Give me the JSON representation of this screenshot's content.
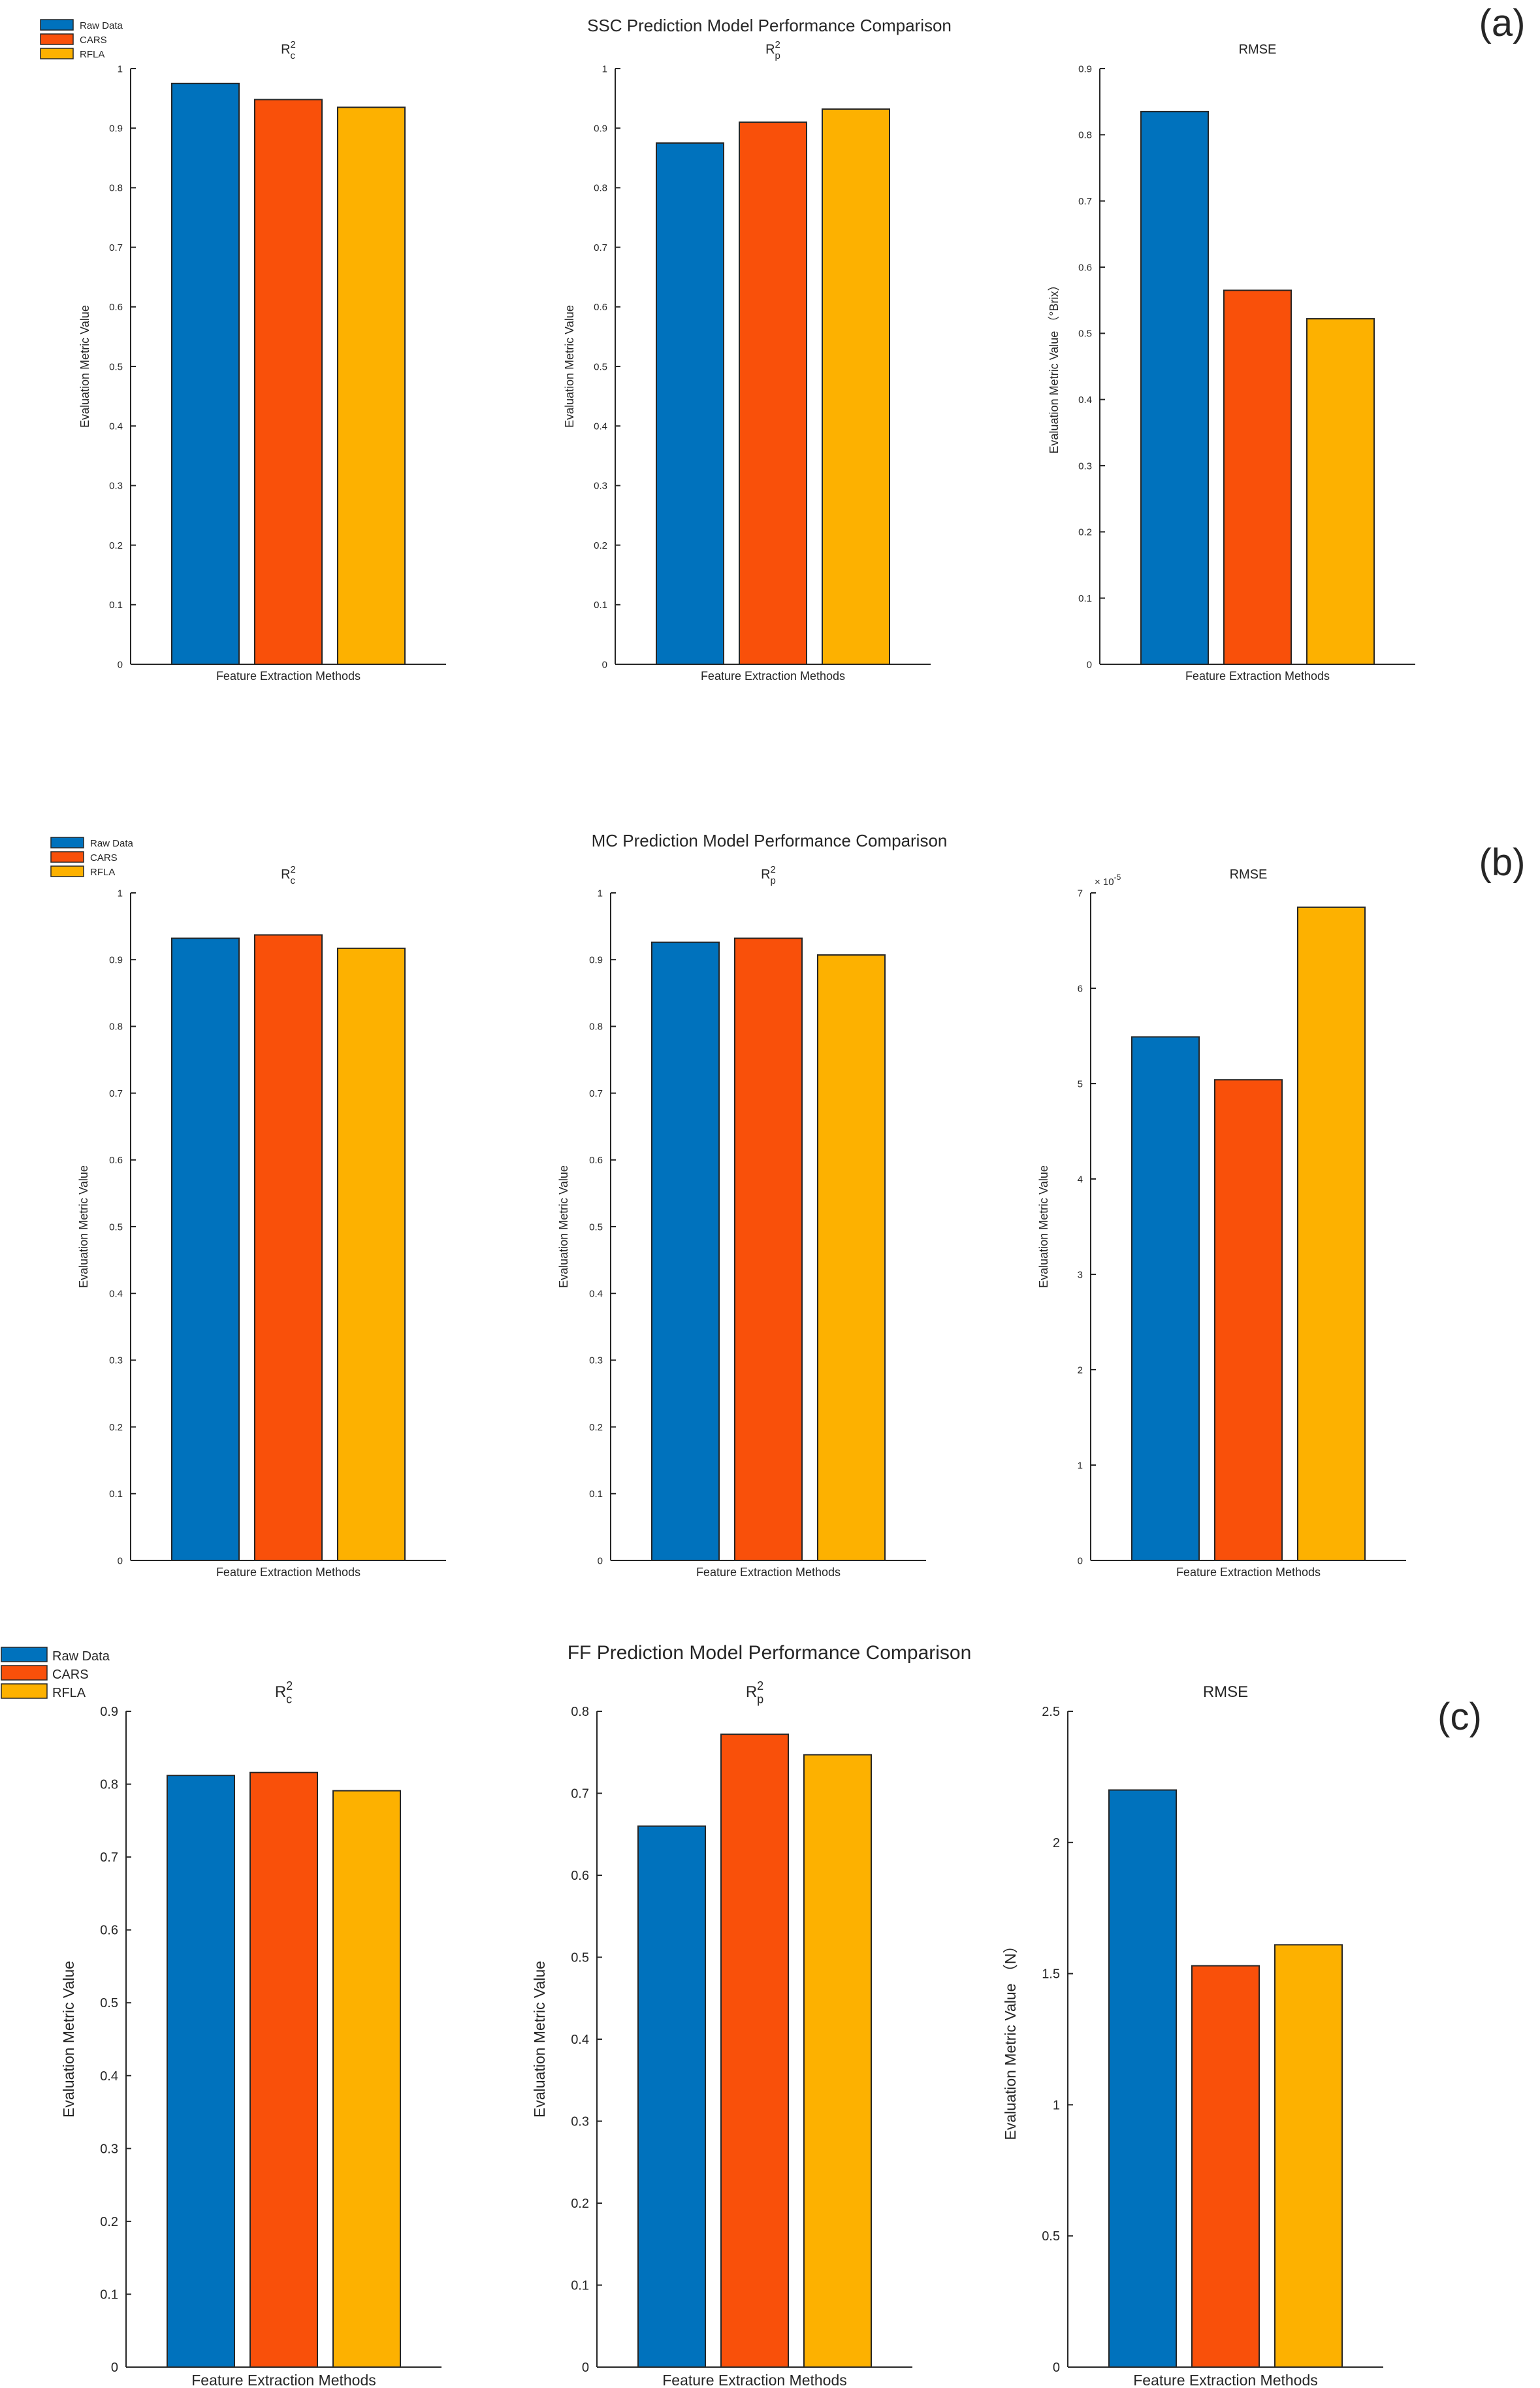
{
  "colors": {
    "raw_data": "#0072BD",
    "cars": "#F9500A",
    "rfla": "#FDB100"
  },
  "chart_data": [
    {
      "id": "a",
      "panel_label": "(a)",
      "title": "SSC Prediction Model Performance Comparison",
      "legend": [
        "Raw Data",
        "CARS",
        "RFLA"
      ],
      "subplots": [
        {
          "type": "bar",
          "title": "R",
          "title_sup": "2",
          "title_sub": "c",
          "xlabel": "Feature Extraction Methods",
          "ylabel": "Evaluation Metric Value",
          "ylim": [
            0,
            1
          ],
          "yticks": [
            0,
            0.1,
            0.2,
            0.3,
            0.4,
            0.5,
            0.6,
            0.7,
            0.8,
            0.9,
            1
          ],
          "ytick_labels": [
            "0",
            "0.1",
            "0.2",
            "0.3",
            "0.4",
            "0.5",
            "0.6",
            "0.7",
            "0.8",
            "0.9",
            "1"
          ],
          "categories": [
            "Raw Data",
            "CARS",
            "RFLA"
          ],
          "values": [
            0.975,
            0.948,
            0.935
          ]
        },
        {
          "type": "bar",
          "title": "R",
          "title_sup": "2",
          "title_sub": "p",
          "xlabel": "Feature Extraction Methods",
          "ylabel": "Evaluation Metric Value",
          "ylim": [
            0,
            1
          ],
          "yticks": [
            0,
            0.1,
            0.2,
            0.3,
            0.4,
            0.5,
            0.6,
            0.7,
            0.8,
            0.9,
            1
          ],
          "ytick_labels": [
            "0",
            "0.1",
            "0.2",
            "0.3",
            "0.4",
            "0.5",
            "0.6",
            "0.7",
            "0.8",
            "0.9",
            "1"
          ],
          "categories": [
            "Raw Data",
            "CARS",
            "RFLA"
          ],
          "values": [
            0.875,
            0.91,
            0.932
          ]
        },
        {
          "type": "bar",
          "title": "RMSE",
          "title_sup": "",
          "title_sub": "",
          "xlabel": "Feature Extraction Methods",
          "ylabel": "Evaluation Metric Value （°Brix）",
          "ylim": [
            0,
            0.9
          ],
          "yticks": [
            0,
            0.1,
            0.2,
            0.3,
            0.4,
            0.5,
            0.6,
            0.7,
            0.8,
            0.9
          ],
          "ytick_labels": [
            "0",
            "0.1",
            "0.2",
            "0.3",
            "0.4",
            "0.5",
            "0.6",
            "0.7",
            "0.8",
            "0.9"
          ],
          "categories": [
            "Raw Data",
            "CARS",
            "RFLA"
          ],
          "values": [
            0.835,
            0.565,
            0.522
          ]
        }
      ]
    },
    {
      "id": "b",
      "panel_label": "(b)",
      "title": "MC Prediction Model Performance Comparison",
      "legend": [
        "Raw Data",
        "CARS",
        "RFLA"
      ],
      "subplots": [
        {
          "type": "bar",
          "title": "R",
          "title_sup": "2",
          "title_sub": "c",
          "xlabel": "Feature Extraction Methods",
          "ylabel": "Evaluation Metric Value",
          "ylim": [
            0,
            1
          ],
          "yticks": [
            0,
            0.1,
            0.2,
            0.3,
            0.4,
            0.5,
            0.6,
            0.7,
            0.8,
            0.9,
            1
          ],
          "ytick_labels": [
            "0",
            "0.1",
            "0.2",
            "0.3",
            "0.4",
            "0.5",
            "0.6",
            "0.7",
            "0.8",
            "0.9",
            "1"
          ],
          "categories": [
            "Raw Data",
            "CARS",
            "RFLA"
          ],
          "values": [
            0.932,
            0.937,
            0.917
          ]
        },
        {
          "type": "bar",
          "title": "R",
          "title_sup": "2",
          "title_sub": "p",
          "xlabel": "Feature Extraction Methods",
          "ylabel": "Evaluation Metric Value",
          "ylim": [
            0,
            1
          ],
          "yticks": [
            0,
            0.1,
            0.2,
            0.3,
            0.4,
            0.5,
            0.6,
            0.7,
            0.8,
            0.9,
            1
          ],
          "ytick_labels": [
            "0",
            "0.1",
            "0.2",
            "0.3",
            "0.4",
            "0.5",
            "0.6",
            "0.7",
            "0.8",
            "0.9",
            "1"
          ],
          "categories": [
            "Raw Data",
            "CARS",
            "RFLA"
          ],
          "values": [
            0.926,
            0.932,
            0.907
          ]
        },
        {
          "type": "bar",
          "title": "RMSE",
          "title_sup": "",
          "title_sub": "",
          "xlabel": "Feature Extraction Methods",
          "ylabel": "Evaluation Metric Value",
          "ylim": [
            0,
            7
          ],
          "yticks": [
            0,
            1,
            2,
            3,
            4,
            5,
            6,
            7
          ],
          "ytick_labels": [
            "0",
            "1",
            "2",
            "3",
            "4",
            "5",
            "6",
            "7"
          ],
          "y_exponent_base": "× 10",
          "y_exponent_power": "-5",
          "categories": [
            "Raw Data",
            "CARS",
            "RFLA"
          ],
          "values": [
            5.49,
            5.04,
            6.85
          ]
        }
      ]
    },
    {
      "id": "c",
      "panel_label": "(c)",
      "title": "FF Prediction Model Performance Comparison",
      "legend": [
        "Raw Data",
        "CARS",
        "RFLA"
      ],
      "subplots": [
        {
          "type": "bar",
          "title": "R",
          "title_sup": "2",
          "title_sub": "c",
          "xlabel": "Feature Extraction Methods",
          "ylabel": "Evaluation Metric Value",
          "ylim": [
            0,
            0.9
          ],
          "yticks": [
            0,
            0.1,
            0.2,
            0.3,
            0.4,
            0.5,
            0.6,
            0.7,
            0.8,
            0.9
          ],
          "ytick_labels": [
            "0",
            "0.1",
            "0.2",
            "0.3",
            "0.4",
            "0.5",
            "0.6",
            "0.7",
            "0.8",
            "0.9"
          ],
          "categories": [
            "Raw Data",
            "CARS",
            "RFLA"
          ],
          "values": [
            0.812,
            0.816,
            0.791
          ]
        },
        {
          "type": "bar",
          "title": "R",
          "title_sup": "2",
          "title_sub": "p",
          "xlabel": "Feature Extraction Methods",
          "ylabel": "Evaluation Metric Value",
          "ylim": [
            0,
            0.8
          ],
          "yticks": [
            0,
            0.1,
            0.2,
            0.3,
            0.4,
            0.5,
            0.6,
            0.7,
            0.8
          ],
          "ytick_labels": [
            "0",
            "0.1",
            "0.2",
            "0.3",
            "0.4",
            "0.5",
            "0.6",
            "0.7",
            "0.8"
          ],
          "categories": [
            "Raw Data",
            "CARS",
            "RFLA"
          ],
          "values": [
            0.66,
            0.772,
            0.747
          ]
        },
        {
          "type": "bar",
          "title": "RMSE",
          "title_sup": "",
          "title_sub": "",
          "xlabel": "Feature Extraction Methods",
          "ylabel": "Evaluation Metric Value （N）",
          "ylim": [
            0,
            2.5
          ],
          "yticks": [
            0,
            0.5,
            1,
            1.5,
            2,
            2.5
          ],
          "ytick_labels": [
            "0",
            "0.5",
            "1",
            "1.5",
            "2",
            "2.5"
          ],
          "categories": [
            "Raw Data",
            "CARS",
            "RFLA"
          ],
          "values": [
            2.2,
            1.53,
            1.61
          ]
        }
      ]
    }
  ]
}
